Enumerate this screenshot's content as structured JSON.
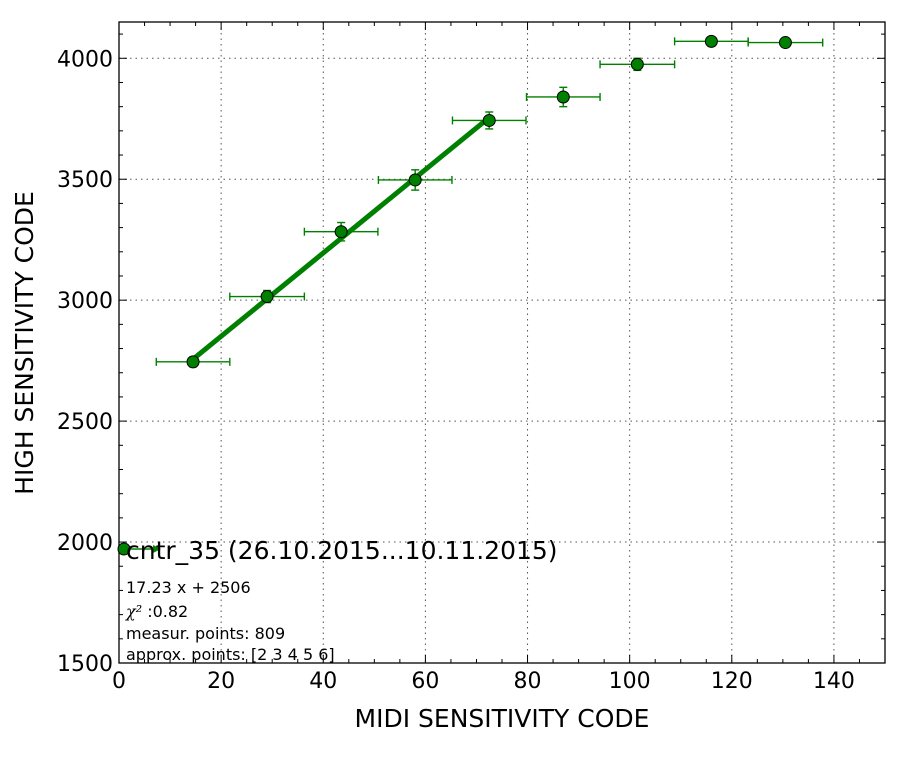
{
  "chart_data": {
    "type": "scatter",
    "xlabel": "MIDI SENSITIVITY CODE",
    "ylabel": "HIGH SENSITIVITY CODE",
    "xlim": [
      0,
      150
    ],
    "ylim": [
      1500,
      4150
    ],
    "x_ticks": [
      0,
      20,
      40,
      60,
      80,
      100,
      120,
      140
    ],
    "y_ticks": [
      1500,
      2000,
      2500,
      3000,
      3500,
      4000
    ],
    "x_minor_step": 5,
    "y_minor_step": 100,
    "grid": true,
    "colors": {
      "series": "#008000",
      "marker_edge": "#000000",
      "grid": "#555555"
    },
    "series": [
      {
        "name": "cntr_35 (26.10.2015...10.11.2015)",
        "marker": "circle",
        "points": [
          {
            "x": 14.5,
            "y": 2745,
            "xerr": 7.2,
            "yerr": 20
          },
          {
            "x": 29.0,
            "y": 3015,
            "xerr": 7.3,
            "yerr": 25
          },
          {
            "x": 43.5,
            "y": 3283,
            "xerr": 7.2,
            "yerr": 38
          },
          {
            "x": 58.0,
            "y": 3497,
            "xerr": 7.2,
            "yerr": 42
          },
          {
            "x": 72.5,
            "y": 3743,
            "xerr": 7.2,
            "yerr": 35
          },
          {
            "x": 87.0,
            "y": 3840,
            "xerr": 7.2,
            "yerr": 40
          },
          {
            "x": 101.5,
            "y": 3975,
            "xerr": 7.3,
            "yerr": 25
          },
          {
            "x": 116.0,
            "y": 4070,
            "xerr": 7.2,
            "yerr": 10
          },
          {
            "x": 130.5,
            "y": 4065,
            "xerr": 7.3,
            "yerr": 10
          }
        ]
      }
    ],
    "fit": {
      "slope": 17.23,
      "intercept": 2506,
      "x_range": [
        14.5,
        72.5
      ]
    },
    "legend": {
      "placement": "bottom-left",
      "title": "cntr_35 (26.10.2015...10.11.2015)",
      "equation": "17.23 x + 2506",
      "chi_symbol": "χ²",
      "chi_value": " :0.82",
      "measur_points": "measur. points: 809",
      "approx_points": "approx. points: [2 3 4 5 6]"
    }
  }
}
